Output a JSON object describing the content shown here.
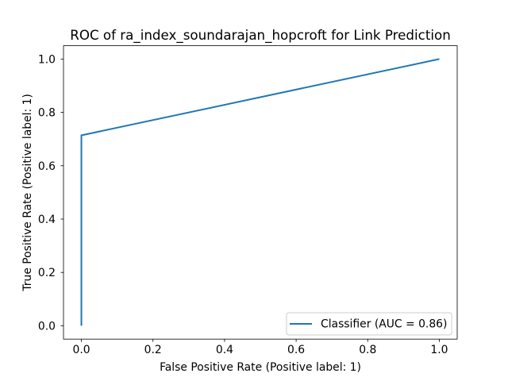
{
  "chart_data": {
    "type": "line",
    "title": "ROC of ra_index_soundarajan_hopcroft for Link Prediction",
    "xlabel": "False Positive Rate (Positive label: 1)",
    "ylabel": "True Positive Rate (Positive label: 1)",
    "xlim": [
      -0.05,
      1.05
    ],
    "ylim": [
      -0.05,
      1.05
    ],
    "xticks": [
      "0.0",
      "0.2",
      "0.4",
      "0.6",
      "0.8",
      "1.0"
    ],
    "yticks": [
      "0.0",
      "0.2",
      "0.4",
      "0.6",
      "0.8",
      "1.0"
    ],
    "grid": false,
    "legend_position": "lower-right",
    "series": [
      {
        "name": "Classifier (AUC = 0.86)",
        "color": "#1f77b4",
        "x": [
          0.0,
          0.0,
          1.0
        ],
        "y": [
          0.0,
          0.714,
          1.0
        ]
      }
    ]
  }
}
